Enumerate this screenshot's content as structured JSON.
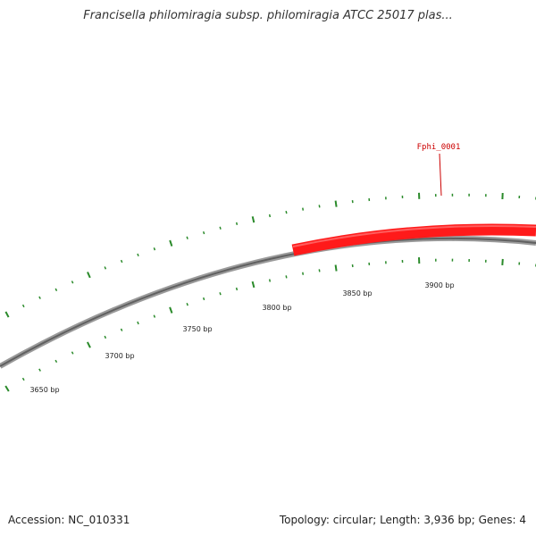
{
  "title": "Francisella philomiragia subsp. philomiragia ATCC 25017 plas...",
  "accession": "Accession: NC_010331",
  "summary": "Topology: circular; Length: 3,936 bp; Genes: 4",
  "colors": {
    "backbone": "#808080",
    "tick": "#2a8a2a",
    "gene_fill": "#ff0000",
    "gene_label": "#cc0000"
  },
  "ticks": {
    "labels": [
      "3650 bp",
      "3700 bp",
      "3750 bp",
      "3800 bp",
      "3850 bp",
      "3900 bp"
    ],
    "label_bp": [
      3650,
      3700,
      3750,
      3800,
      3850,
      3900
    ]
  },
  "genes": [
    {
      "name": "Fphi_0001",
      "start_bp": 3818,
      "strand": "+"
    }
  ]
}
